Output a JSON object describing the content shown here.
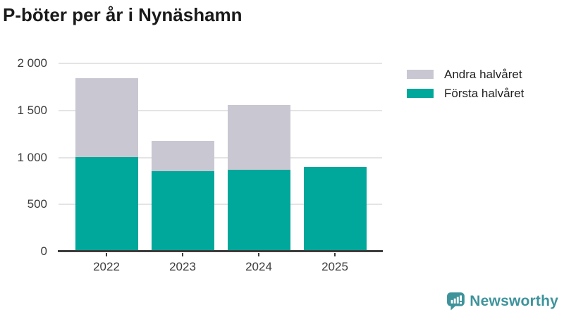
{
  "title": "P-böter per år i Nynäshamn",
  "chart_data": {
    "type": "bar",
    "stacked": true,
    "title": "P-böter per år i Nynäshamn",
    "categories": [
      "2022",
      "2023",
      "2024",
      "2025"
    ],
    "series": [
      {
        "name": "Första halvåret",
        "color": "#00a79b",
        "values": [
          1005,
          855,
          870,
          900
        ]
      },
      {
        "name": "Andra halvåret",
        "color": "#c9c7d1",
        "values": [
          840,
          320,
          690,
          0
        ]
      }
    ],
    "totals": [
      1845,
      1175,
      1560,
      900
    ],
    "xlabel": "",
    "ylabel": "",
    "ylim": [
      0,
      2000
    ],
    "yticks": [
      {
        "value": 0,
        "label": "0"
      },
      {
        "value": 500,
        "label": "500"
      },
      {
        "value": 1000,
        "label": "1 000"
      },
      {
        "value": 1500,
        "label": "1 500"
      },
      {
        "value": 2000,
        "label": "2 000"
      }
    ],
    "grid": true,
    "legend_position": "top-right",
    "legend": [
      {
        "label": "Andra halvåret",
        "color": "#c9c7d1"
      },
      {
        "label": "Första halvåret",
        "color": "#00a79b"
      }
    ]
  },
  "branding": {
    "logo_text": "Newsworthy",
    "logo_color": "#3e939b",
    "logo_icon": "speech-bubble-bar-chart-icon"
  },
  "colors": {
    "first_half": "#00a79b",
    "second_half": "#c9c7d1",
    "gridline": "#e4e4e4",
    "axis": "#3d3d3d",
    "title_text": "#1a1a1a",
    "tick_text": "#3c3c3c"
  }
}
